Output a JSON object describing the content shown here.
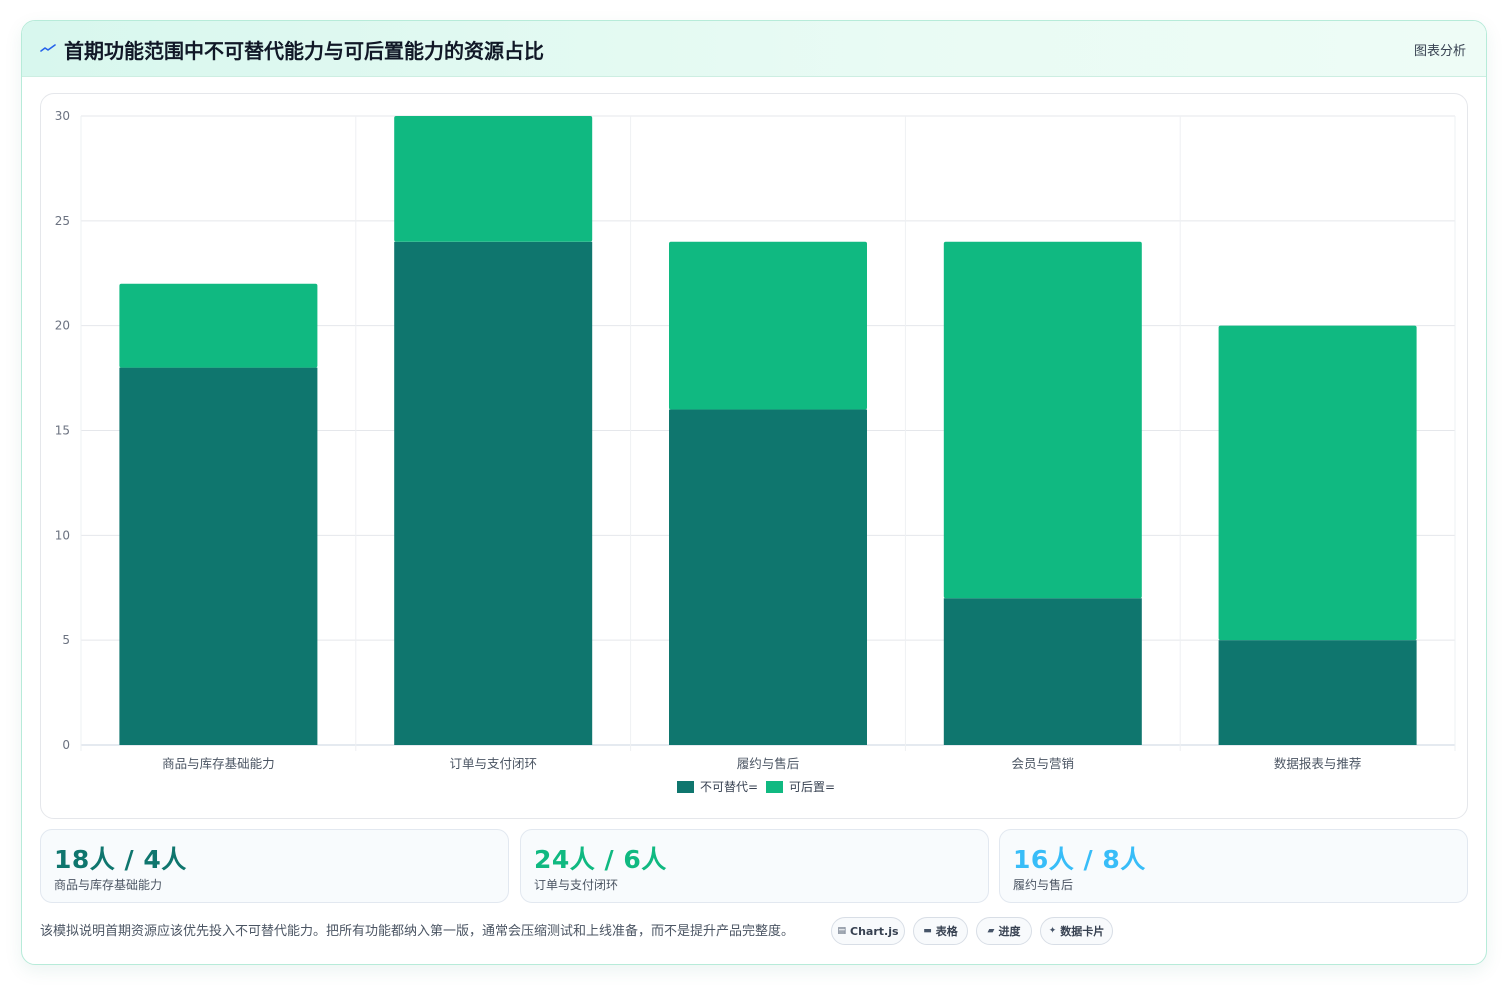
{
  "header": {
    "title": "首期功能范围中不可替代能力与可后置能力的资源占比",
    "action_label": "图表分析"
  },
  "colors": {
    "irreplaceable": "#0f766e",
    "deferrable": "#10b981",
    "stat1": "#0f766e",
    "stat2": "#10b981",
    "stat3": "#38bdf8"
  },
  "chart_data": {
    "type": "bar",
    "stacked": true,
    "categories": [
      "商品与库存基础能力",
      "订单与支付闭环",
      "履约与售后",
      "会员与营销",
      "数据报表与推荐"
    ],
    "series": [
      {
        "name": "不可替代=",
        "values": [
          18,
          24,
          16,
          7,
          5
        ]
      },
      {
        "name": "可后置=",
        "values": [
          4,
          6,
          8,
          17,
          15
        ]
      }
    ],
    "ylim": [
      0,
      30
    ],
    "yticks": [
      0,
      5,
      10,
      15,
      20,
      25,
      30
    ],
    "grid": true,
    "legend_position": "bottom"
  },
  "stats": [
    {
      "value": "18人 / 4人",
      "label": "商品与库存基础能力"
    },
    {
      "value": "24人 / 6人",
      "label": "订单与支付闭环"
    },
    {
      "value": "16人 / 8人",
      "label": "履约与售后"
    }
  ],
  "footer": {
    "note": "该模拟说明首期资源应该优先投入不可替代能力。把所有功能都纳入第一版，通常会压缩测试和上线准备，而不是提升产品完整度。",
    "pills": [
      {
        "icon": "chart-icon",
        "glyph": "▤",
        "label": "Chart.js"
      },
      {
        "icon": "table-icon",
        "glyph": "▬",
        "label": "表格"
      },
      {
        "icon": "progress-icon",
        "glyph": "▰",
        "label": "进度"
      },
      {
        "icon": "sparkle-icon",
        "glyph": "✦",
        "label": "数据卡片"
      }
    ]
  }
}
